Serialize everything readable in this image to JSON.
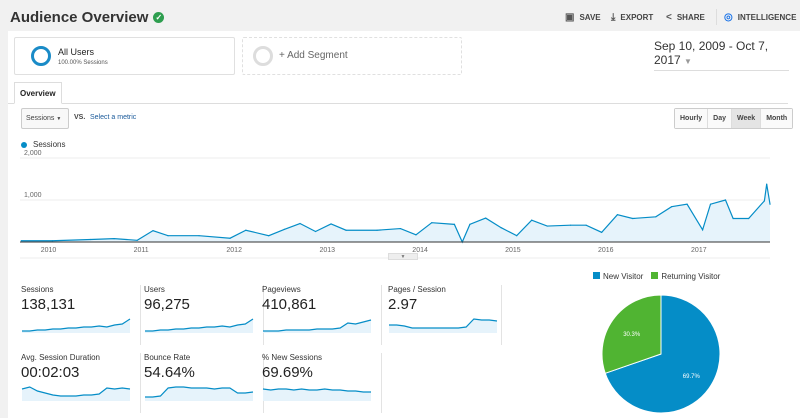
{
  "header": {
    "title": "Audience Overview",
    "verified_icon": "check-shield-icon",
    "save": "SAVE",
    "export": "EXPORT",
    "share": "SHARE",
    "intelligence": "INTELLIGENCE"
  },
  "segments": [
    {
      "name": "All Users",
      "sub": "100.00% Sessions"
    },
    {
      "name": "+ Add Segment"
    }
  ],
  "date_range": "Sep 10, 2009 - Oct 7, 2017",
  "tabs": [
    {
      "label": "Overview",
      "active": true
    }
  ],
  "metric_select": {
    "value": "Sessions",
    "vs": "VS.",
    "select_metric": "Select a metric"
  },
  "granularity": [
    {
      "label": "Hourly"
    },
    {
      "label": "Day"
    },
    {
      "label": "Week",
      "selected": true
    },
    {
      "label": "Month"
    }
  ],
  "colors": {
    "primary": "#058dc7",
    "fill": "#e6f3fb",
    "green": "#50b432"
  },
  "chart_data": [
    {
      "type": "area",
      "series": [
        {
          "name": "Sessions",
          "x": [
            "2009-09",
            "2010-01",
            "2010-06",
            "2010-09",
            "2010-12",
            "2011-02",
            "2011-04",
            "2011-08",
            "2011-12",
            "2012-02",
            "2012-05",
            "2012-07",
            "2012-09",
            "2012-11",
            "2013-01",
            "2013-03",
            "2013-07",
            "2013-10",
            "2013-12",
            "2014-02",
            "2014-05",
            "2014-06",
            "2014-07",
            "2014-09",
            "2014-11",
            "2015-01",
            "2015-03",
            "2015-05",
            "2015-08",
            "2015-10",
            "2015-12",
            "2016-02",
            "2016-04",
            "2016-07",
            "2016-09",
            "2016-11",
            "2017-01",
            "2017-02",
            "2017-04",
            "2017-05",
            "2017-07",
            "2017-09",
            "2017-09-24",
            "2017-10-07"
          ],
          "values": [
            30,
            30,
            60,
            80,
            40,
            270,
            150,
            150,
            90,
            280,
            150,
            300,
            440,
            250,
            430,
            280,
            280,
            320,
            170,
            460,
            420,
            0,
            420,
            570,
            340,
            150,
            520,
            380,
            400,
            400,
            230,
            650,
            560,
            600,
            840,
            900,
            290,
            900,
            1000,
            560,
            560,
            980,
            1380,
            900
          ]
        }
      ],
      "ylim": [
        0,
        2000
      ],
      "yticks": [
        "1,000",
        "2,000"
      ],
      "xticks": [
        "2010",
        "2011",
        "2012",
        "2013",
        "2014",
        "2015",
        "2016",
        "2017"
      ],
      "grid": true,
      "legend": "top-left"
    },
    {
      "type": "pie",
      "categories": [
        "New Visitor",
        "Returning Visitor"
      ],
      "values": [
        69.7,
        30.3
      ],
      "labels": [
        "69.7%",
        "30.3%"
      ],
      "colors": [
        "#058dc7",
        "#50b432"
      ],
      "legend": "top"
    }
  ],
  "metrics": [
    {
      "label": "Sessions",
      "value": "138,131",
      "spark": [
        2,
        2,
        3,
        3,
        4,
        4,
        5,
        5,
        6,
        6,
        7,
        6,
        8,
        9,
        14
      ]
    },
    {
      "label": "Users",
      "value": "96,275",
      "spark": [
        2,
        2,
        3,
        3,
        4,
        4,
        5,
        5,
        6,
        6,
        7,
        6,
        8,
        9,
        14
      ]
    },
    {
      "label": "Pageviews",
      "value": "410,861",
      "spark": [
        2,
        2,
        2,
        3,
        3,
        3,
        3,
        4,
        4,
        4,
        5,
        10,
        9,
        11,
        13
      ]
    },
    {
      "label": "Pages / Session",
      "value": "2.97",
      "spark": [
        8,
        8,
        7,
        5,
        5,
        5,
        5,
        5,
        5,
        5,
        6,
        14,
        13,
        13,
        12
      ]
    },
    {
      "label": "Avg. Session Duration",
      "value": "00:02:03",
      "spark": [
        12,
        14,
        10,
        8,
        6,
        5,
        5,
        5,
        6,
        6,
        7,
        13,
        12,
        13,
        12
      ]
    },
    {
      "label": "Bounce Rate",
      "value": "54.64%",
      "spark": [
        4,
        4,
        5,
        13,
        14,
        14,
        13,
        13,
        13,
        12,
        13,
        13,
        8,
        8,
        9
      ]
    },
    {
      "label": "% New Sessions",
      "value": "69.69%",
      "spark": [
        12,
        11,
        12,
        12,
        11,
        12,
        11,
        11,
        12,
        11,
        11,
        10,
        10,
        9,
        9
      ]
    }
  ]
}
